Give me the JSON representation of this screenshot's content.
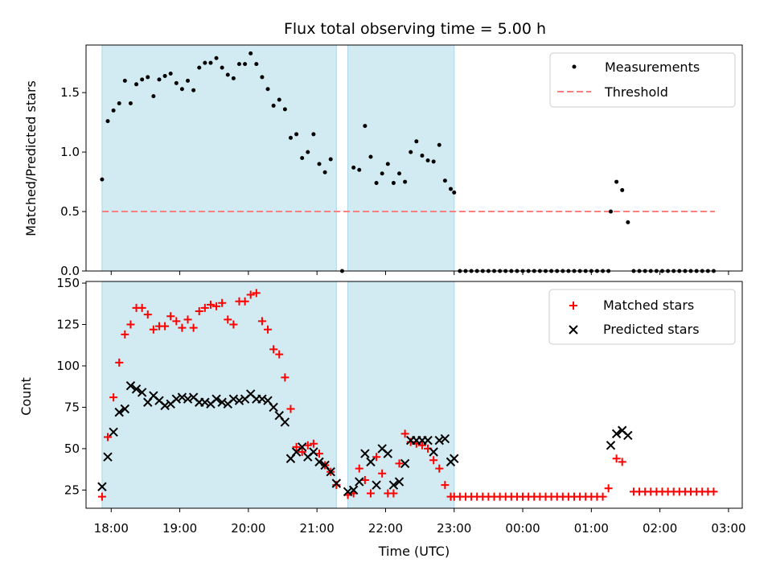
{
  "chart_data": [
    {
      "type": "scatter",
      "title": "Flux total observing time = 5.00 h",
      "ylabel": "Matched/Predicted stars",
      "ylim": [
        0,
        1.9
      ],
      "yticks": [
        "0.0",
        "0.5",
        "1.0",
        "1.5"
      ],
      "legend": {
        "placement": "top-right",
        "entries": [
          "Measurements",
          "Threshold"
        ]
      },
      "colors": {
        "measurements": "#000000",
        "threshold": "#ff7f7f",
        "shade": "#add8e6"
      },
      "shaded_ranges": [
        [
          "17:52",
          "21:17"
        ],
        [
          "21:27",
          "23:00"
        ]
      ],
      "threshold": {
        "value": 0.5,
        "x_start": "17:52",
        "x_end": "02:48"
      },
      "series": [
        {
          "name": "Measurements",
          "x": [
            "17:52",
            "17:57",
            "18:02",
            "18:07",
            "18:12",
            "18:17",
            "18:22",
            "18:27",
            "18:32",
            "18:37",
            "18:42",
            "18:47",
            "18:52",
            "18:57",
            "19:02",
            "19:07",
            "19:12",
            "19:17",
            "19:22",
            "19:27",
            "19:32",
            "19:37",
            "19:42",
            "19:47",
            "19:52",
            "19:57",
            "20:02",
            "20:07",
            "20:12",
            "20:17",
            "20:22",
            "20:27",
            "20:32",
            "20:37",
            "20:42",
            "20:47",
            "20:52",
            "20:57",
            "21:02",
            "21:07",
            "21:12",
            "21:22",
            "21:32",
            "21:37",
            "21:42",
            "21:47",
            "21:52",
            "21:57",
            "22:02",
            "22:07",
            "22:12",
            "22:17",
            "22:22",
            "22:27",
            "22:32",
            "22:37",
            "22:42",
            "22:47",
            "22:52",
            "22:57",
            "23:00",
            "01:17",
            "01:22",
            "01:27",
            "01:32"
          ],
          "y": [
            0.77,
            1.26,
            1.35,
            1.41,
            1.6,
            1.41,
            1.57,
            1.61,
            1.63,
            1.47,
            1.61,
            1.64,
            1.66,
            1.58,
            1.53,
            1.6,
            1.52,
            1.71,
            1.75,
            1.75,
            1.79,
            1.71,
            1.65,
            1.62,
            1.74,
            1.74,
            1.83,
            1.74,
            1.63,
            1.53,
            1.39,
            1.44,
            1.36,
            1.12,
            1.15,
            0.95,
            1.0,
            1.15,
            0.9,
            0.83,
            0.94,
            0.0,
            0.87,
            0.85,
            1.22,
            0.96,
            0.74,
            0.82,
            0.9,
            0.74,
            0.82,
            0.75,
            1.0,
            1.09,
            0.97,
            0.93,
            0.92,
            1.06,
            0.76,
            0.69,
            0.66,
            0.5,
            0.75,
            0.68,
            0.41
          ]
        },
        {
          "name": "",
          "note_kind": "zero-valued run",
          "x": [
            "23:05",
            "23:10",
            "23:15",
            "23:20",
            "23:25",
            "23:30",
            "23:35",
            "23:40",
            "23:45",
            "23:50",
            "23:55",
            "00:00",
            "00:05",
            "00:10",
            "00:15",
            "00:20",
            "00:25",
            "00:30",
            "00:35",
            "00:40",
            "00:45",
            "00:50",
            "00:55",
            "01:00",
            "01:05",
            "01:10",
            "01:15",
            "01:37",
            "01:42",
            "01:47",
            "01:52",
            "01:57",
            "02:02",
            "02:07",
            "02:12",
            "02:17",
            "02:22",
            "02:27",
            "02:32",
            "02:37",
            "02:42",
            "02:47"
          ],
          "y": [
            0,
            0,
            0,
            0,
            0,
            0,
            0,
            0,
            0,
            0,
            0,
            0,
            0,
            0,
            0,
            0,
            0,
            0,
            0,
            0,
            0,
            0,
            0,
            0,
            0,
            0,
            0,
            0,
            0,
            0,
            0,
            0,
            0,
            0,
            0,
            0,
            0,
            0,
            0,
            0,
            0,
            0
          ]
        }
      ]
    },
    {
      "type": "scatter",
      "title": "",
      "xlabel": "Time (UTC)",
      "ylabel": "Count",
      "ylim": [
        14,
        151
      ],
      "yticks": [
        "25",
        "50",
        "75",
        "100",
        "125",
        "150"
      ],
      "xticks": [
        "18:00",
        "19:00",
        "20:00",
        "21:00",
        "22:00",
        "23:00",
        "00:00",
        "01:00",
        "02:00",
        "03:00"
      ],
      "legend": {
        "placement": "top-right",
        "entries": [
          "Matched stars",
          "Predicted stars"
        ]
      },
      "colors": {
        "matched": "#ff0000",
        "predicted": "#000000",
        "shade": "#add8e6"
      },
      "shaded_ranges": [
        [
          "17:52",
          "21:17"
        ],
        [
          "21:27",
          "23:00"
        ]
      ],
      "series": [
        {
          "name": "Matched stars",
          "x": [
            "17:52",
            "17:57",
            "18:02",
            "18:07",
            "18:12",
            "18:17",
            "18:22",
            "18:27",
            "18:32",
            "18:37",
            "18:42",
            "18:47",
            "18:52",
            "18:57",
            "19:02",
            "19:07",
            "19:12",
            "19:17",
            "19:22",
            "19:27",
            "19:32",
            "19:37",
            "19:42",
            "19:47",
            "19:52",
            "19:57",
            "20:02",
            "20:07",
            "20:12",
            "20:17",
            "20:22",
            "20:27",
            "20:32",
            "20:37",
            "20:42",
            "20:47",
            "20:52",
            "20:57",
            "21:02",
            "21:07",
            "21:12",
            "21:17",
            "21:27",
            "21:32",
            "21:37",
            "21:42",
            "21:47",
            "21:52",
            "21:57",
            "22:02",
            "22:07",
            "22:12",
            "22:17",
            "22:22",
            "22:27",
            "22:32",
            "22:37",
            "22:42",
            "22:47",
            "22:52",
            "22:57",
            "23:00",
            "23:05",
            "23:10",
            "23:15",
            "23:20",
            "23:25",
            "23:30",
            "23:35",
            "23:40",
            "23:45",
            "23:50",
            "23:55",
            "00:00",
            "00:05",
            "00:10",
            "00:15",
            "00:20",
            "00:25",
            "00:30",
            "00:35",
            "00:40",
            "00:45",
            "00:50",
            "00:55",
            "01:00",
            "01:05",
            "01:10",
            "01:15",
            "01:22",
            "01:27",
            "01:37",
            "01:42",
            "01:47",
            "01:52",
            "01:57",
            "02:02",
            "02:07",
            "02:12",
            "02:17",
            "02:22",
            "02:27",
            "02:32",
            "02:37",
            "02:42",
            "02:47"
          ],
          "y": [
            21,
            57,
            81,
            102,
            119,
            125,
            135,
            135,
            131,
            122,
            124,
            124,
            130,
            127,
            123,
            128,
            123,
            133,
            135,
            137,
            136,
            138,
            128,
            125,
            139,
            139,
            143,
            144,
            127,
            122,
            110,
            107,
            93,
            74,
            51,
            48,
            52,
            53,
            47,
            40,
            36,
            28,
            22,
            23,
            38,
            31,
            23,
            45,
            35,
            23,
            23,
            41,
            59,
            54,
            53,
            52,
            50,
            43,
            38,
            28,
            21,
            21,
            21,
            21,
            21,
            21,
            21,
            21,
            21,
            21,
            21,
            21,
            21,
            21,
            21,
            21,
            21,
            21,
            21,
            21,
            21,
            21,
            21,
            21,
            21,
            21,
            21,
            21,
            26,
            44,
            42,
            24,
            24,
            24,
            24,
            24,
            24,
            24,
            24,
            24,
            24,
            24,
            24,
            24,
            24,
            24
          ]
        },
        {
          "name": "Predicted stars",
          "x": [
            "17:52",
            "17:57",
            "18:02",
            "18:07",
            "18:12",
            "18:17",
            "18:22",
            "18:27",
            "18:32",
            "18:37",
            "18:42",
            "18:47",
            "18:52",
            "18:57",
            "19:02",
            "19:07",
            "19:12",
            "19:17",
            "19:22",
            "19:27",
            "19:32",
            "19:37",
            "19:42",
            "19:47",
            "19:52",
            "19:57",
            "20:02",
            "20:07",
            "20:12",
            "20:17",
            "20:22",
            "20:27",
            "20:32",
            "20:37",
            "20:42",
            "20:47",
            "20:52",
            "20:57",
            "21:02",
            "21:07",
            "21:12",
            "21:17",
            "21:27",
            "21:32",
            "21:37",
            "21:42",
            "21:47",
            "21:52",
            "21:57",
            "22:02",
            "22:07",
            "22:12",
            "22:17",
            "22:22",
            "22:27",
            "22:32",
            "22:37",
            "22:42",
            "22:47",
            "22:52",
            "22:57",
            "23:00",
            "01:17",
            "01:22",
            "01:27",
            "01:32"
          ],
          "y": [
            27,
            45,
            60,
            72,
            74,
            88,
            86,
            84,
            78,
            82,
            79,
            76,
            77,
            80,
            81,
            80,
            81,
            78,
            78,
            77,
            80,
            78,
            77,
            80,
            79,
            80,
            83,
            80,
            80,
            79,
            75,
            70,
            66,
            44,
            48,
            51,
            45,
            48,
            42,
            40,
            36,
            29,
            24,
            25,
            30,
            47,
            42,
            28,
            50,
            47,
            28,
            30,
            41,
            55,
            55,
            55,
            55,
            48,
            55,
            56,
            42,
            44,
            52,
            59,
            61,
            58
          ]
        }
      ]
    }
  ]
}
